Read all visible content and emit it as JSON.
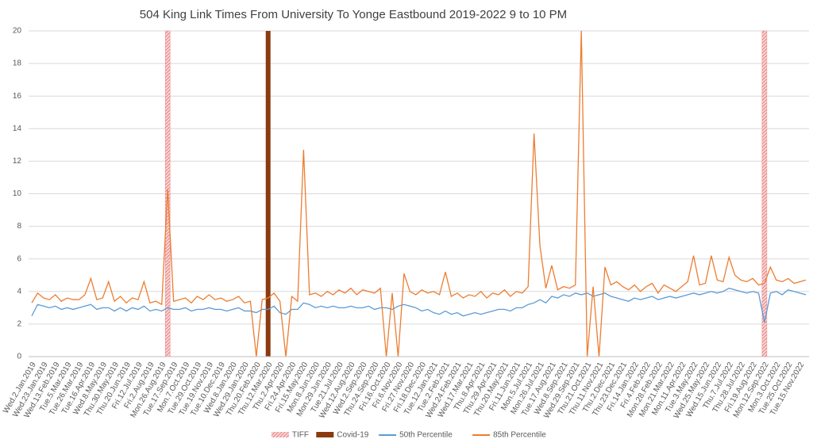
{
  "chart_data": {
    "type": "line",
    "title": "504 King Link Times From University To Yonge Eastbound 2019-2022 9 to 10 PM",
    "ylim": [
      0,
      20
    ],
    "yticks": [
      0,
      2,
      4,
      6,
      8,
      10,
      12,
      14,
      16,
      18,
      20
    ],
    "grid": true,
    "legend": "bottom",
    "categories": [
      "Wed.2.Jan.2019",
      null,
      "Wed.23.Jan.2019",
      null,
      "Wed.13.Feb.2019",
      null,
      "Tue.5.Mar.2019",
      null,
      "Tue.26.Mar.2019",
      null,
      "Tue.16.Apr.2019",
      null,
      "Wed.8.May.2019",
      null,
      "Thu.30.May.2019",
      null,
      "Thu.20.Jun.2019",
      null,
      "Fri.12.Jul.2019",
      null,
      "Fri.2.Aug.2019",
      null,
      "Mon.26.Aug.2019",
      null,
      "Tue.17.Sep.2019",
      null,
      "Mon.7.Oct.2019",
      null,
      "Tue.29.Oct.2019",
      null,
      "Tue.19.Nov.2019",
      null,
      "Tue.10.Dec.2019",
      null,
      "Wed.8.Jan.2020",
      null,
      "Wed.29.Jan.2020",
      null,
      "Thu.20.Feb.2020",
      null,
      "Thu.12.Mar.2020",
      null,
      "Thu.2.Apr.2020",
      null,
      "Fri.24.Apr.2020",
      null,
      "Fri.15.May.2020",
      null,
      "Mon.8.Jun.2020",
      null,
      "Mon.29.Jun.2020",
      null,
      "Tue.21.Jul.2020",
      null,
      "Wed.12.Aug.2020",
      null,
      "Wed.2.Sep.2020",
      null,
      "Thu.24.Sep.2020",
      null,
      "Fri.16.Oct.2020",
      null,
      "Fri.6.Nov.2020",
      null,
      "Fri.27.Nov.2020",
      null,
      "Fri.18.Dec.2020",
      null,
      "Tue.12.Jan.2021",
      null,
      "Tue.2.Feb.2021",
      null,
      "Wed.24.Feb.2021",
      null,
      "Wed.17.Mar.2021",
      null,
      "Thu.8.Apr.2021",
      null,
      "Thu.29.Apr.2021",
      null,
      "Thu.20.May.2021",
      null,
      "Fri.11.Jun.2021",
      null,
      "Mon.5.Jul.2021",
      null,
      "Mon.26.Jul.2021",
      null,
      "Tue.17.Aug.2021",
      null,
      "Wed.8.Sep.2021",
      null,
      "Wed.29.Sep.2021",
      null,
      "Thu.21.Oct.2021",
      null,
      "Thu.11.Nov.2021",
      null,
      "Thu.2.Dec.2021",
      null,
      "Thu.23.Dec.2021",
      null,
      "Fri.14.Jan.2022",
      null,
      "Fri.4.Feb.2022",
      null,
      "Mon.28.Feb.2022",
      null,
      "Mon.21.Mar.2022",
      null,
      "Mon.11.Apr.2022",
      null,
      "Tue.3.May.2022",
      null,
      "Wed.25.May.2022",
      null,
      "Wed.15.Jun.2022",
      null,
      "Thu.7.Jul.2022",
      null,
      "Thu.28.Jul.2022",
      null,
      "Fri.19.Aug.2022",
      null,
      "Mon.12.Sep.2022",
      null,
      "Mon.3.Oct.2022",
      null,
      "Tue.25.Oct.2022",
      null,
      "Tue.15.Nov.2022",
      null
    ],
    "series": [
      {
        "name": "TIFF",
        "type": "bar",
        "color": "#e8878a",
        "hatch": true,
        "values": [
          null,
          null,
          null,
          null,
          null,
          null,
          null,
          null,
          null,
          null,
          null,
          null,
          null,
          null,
          null,
          null,
          null,
          null,
          null,
          null,
          null,
          null,
          null,
          20,
          null,
          null,
          null,
          null,
          null,
          null,
          null,
          null,
          null,
          null,
          null,
          null,
          null,
          null,
          null,
          null,
          null,
          null,
          null,
          null,
          null,
          null,
          null,
          null,
          null,
          null,
          null,
          null,
          null,
          null,
          null,
          null,
          null,
          null,
          null,
          null,
          null,
          null,
          null,
          null,
          null,
          null,
          null,
          null,
          null,
          null,
          null,
          null,
          null,
          null,
          null,
          null,
          null,
          null,
          null,
          null,
          null,
          null,
          null,
          null,
          null,
          null,
          null,
          null,
          null,
          null,
          null,
          null,
          null,
          null,
          null,
          null,
          null,
          null,
          null,
          null,
          null,
          null,
          null,
          null,
          null,
          null,
          null,
          null,
          null,
          null,
          null,
          null,
          null,
          null,
          null,
          null,
          null,
          null,
          null,
          null,
          null,
          null,
          null,
          null,
          20,
          null,
          null,
          null,
          null,
          null,
          null,
          null
        ]
      },
      {
        "name": "Covid-19",
        "type": "bar",
        "color": "#8b3a0f",
        "hatch": false,
        "values": [
          null,
          null,
          null,
          null,
          null,
          null,
          null,
          null,
          null,
          null,
          null,
          null,
          null,
          null,
          null,
          null,
          null,
          null,
          null,
          null,
          null,
          null,
          null,
          null,
          null,
          null,
          null,
          null,
          null,
          null,
          null,
          null,
          null,
          null,
          null,
          null,
          null,
          null,
          null,
          null,
          20,
          null,
          null,
          null,
          null,
          null,
          null,
          null,
          null,
          null,
          null,
          null,
          null,
          null,
          null,
          null,
          null,
          null,
          null,
          null,
          null,
          null,
          null,
          null,
          null,
          null,
          null,
          null,
          null,
          null,
          null,
          null,
          null,
          null,
          null,
          null,
          null,
          null,
          null,
          null,
          null,
          null,
          null,
          null,
          null,
          null,
          null,
          null,
          null,
          null,
          null,
          null,
          null,
          null,
          null,
          null,
          null,
          null,
          null,
          null,
          null,
          null,
          null,
          null,
          null,
          null,
          null,
          null,
          null,
          null,
          null,
          null,
          null,
          null,
          null,
          null,
          null,
          null,
          null,
          null,
          null,
          null,
          null,
          null,
          null,
          null,
          null,
          null,
          null,
          null,
          null,
          null
        ]
      },
      {
        "name": "50th Percentile",
        "type": "line",
        "color": "#5b9bd5",
        "values": [
          2.5,
          3.2,
          3.1,
          3.0,
          3.1,
          2.9,
          3.0,
          2.9,
          3.0,
          3.1,
          3.2,
          2.9,
          3.0,
          3.0,
          2.8,
          3.0,
          2.8,
          3.0,
          2.9,
          3.1,
          2.8,
          2.9,
          2.8,
          3.0,
          2.9,
          2.9,
          3.0,
          2.8,
          2.9,
          2.9,
          3.0,
          2.9,
          2.9,
          2.8,
          2.9,
          3.0,
          2.8,
          2.8,
          2.7,
          2.9,
          2.9,
          3.1,
          2.7,
          2.6,
          2.9,
          2.9,
          3.3,
          3.2,
          3.0,
          3.1,
          3.0,
          3.1,
          3.0,
          3.0,
          3.1,
          3.0,
          3.0,
          3.1,
          2.9,
          3.0,
          3.0,
          2.9,
          3.1,
          3.2,
          3.1,
          3.0,
          2.8,
          2.9,
          2.7,
          2.6,
          2.8,
          2.6,
          2.7,
          2.5,
          2.6,
          2.7,
          2.6,
          2.7,
          2.8,
          2.9,
          2.9,
          2.8,
          3.0,
          3.0,
          3.2,
          3.3,
          3.5,
          3.3,
          3.7,
          3.6,
          3.8,
          3.7,
          3.9,
          3.8,
          3.9,
          3.7,
          3.8,
          3.9,
          3.7,
          3.6,
          3.5,
          3.4,
          3.6,
          3.5,
          3.6,
          3.7,
          3.5,
          3.6,
          3.7,
          3.6,
          3.7,
          3.8,
          3.9,
          3.8,
          3.9,
          4.0,
          3.9,
          4.0,
          4.2,
          4.1,
          4.0,
          3.9,
          4.0,
          3.9,
          2.1,
          3.9,
          4.0,
          3.8,
          4.1,
          4.0,
          3.9,
          3.8
        ]
      },
      {
        "name": "85th Percentile",
        "type": "line",
        "color": "#ed7d31",
        "values": [
          3.3,
          3.9,
          3.6,
          3.5,
          3.8,
          3.4,
          3.6,
          3.5,
          3.5,
          3.8,
          4.8,
          3.5,
          3.6,
          4.6,
          3.4,
          3.7,
          3.3,
          3.6,
          3.5,
          4.6,
          3.3,
          3.4,
          3.2,
          10.3,
          3.4,
          3.5,
          3.6,
          3.3,
          3.7,
          3.5,
          3.8,
          3.5,
          3.6,
          3.4,
          3.5,
          3.7,
          3.3,
          3.4,
          0,
          3.5,
          3.6,
          3.9,
          3.4,
          0,
          3.7,
          3.4,
          12.7,
          3.8,
          3.9,
          3.7,
          4.0,
          3.8,
          4.1,
          3.9,
          4.2,
          3.8,
          4.1,
          4.0,
          3.9,
          4.2,
          0,
          3.9,
          0,
          5.1,
          4.0,
          3.8,
          4.1,
          3.9,
          4.0,
          3.8,
          5.2,
          3.7,
          3.9,
          3.6,
          3.8,
          3.7,
          4.0,
          3.6,
          3.9,
          3.8,
          4.1,
          3.7,
          4.0,
          3.9,
          4.3,
          13.7,
          6.8,
          4.2,
          5.6,
          4.1,
          4.3,
          4.2,
          4.4,
          20,
          0,
          4.3,
          0,
          5.5,
          4.4,
          4.6,
          4.3,
          4.1,
          4.4,
          4.0,
          4.3,
          4.5,
          3.9,
          4.4,
          4.2,
          4.0,
          4.3,
          4.6,
          6.2,
          4.4,
          4.5,
          6.2,
          4.7,
          4.6,
          6.1,
          5.0,
          4.7,
          4.6,
          4.8,
          4.4,
          4.5,
          5.5,
          4.7,
          4.6,
          4.8,
          4.5,
          4.6,
          4.7
        ]
      }
    ]
  }
}
